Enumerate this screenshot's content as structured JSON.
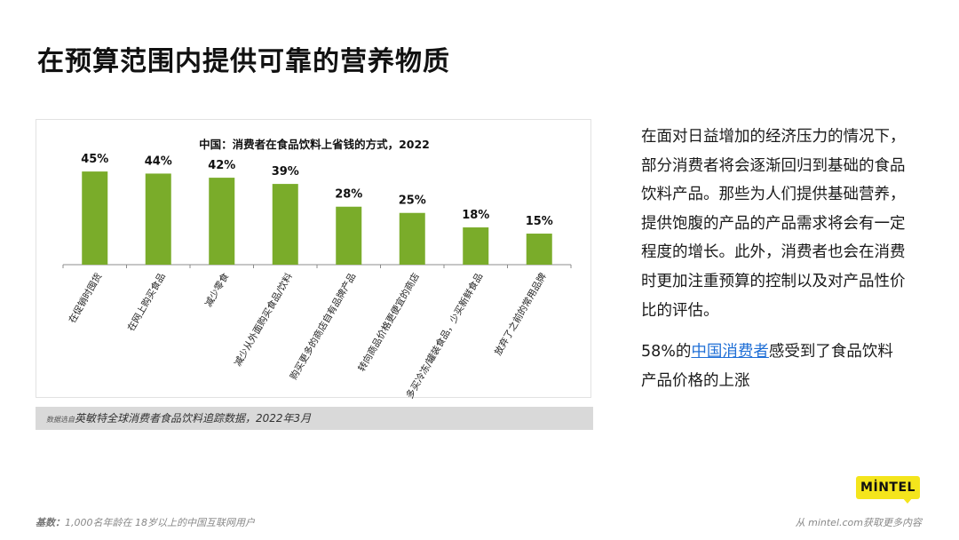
{
  "page": {
    "title": "在预算范围内提供可靠的营养物质"
  },
  "chart_data": {
    "type": "bar",
    "title": "中国：消费者在食品饮料上省钱的方式，2022",
    "categories": [
      "在促销时囤货",
      "在网上购买食品",
      "减少零食",
      "减少从外面购买食品/饮料",
      "购买更多的商店自有品牌产品",
      "转向商品价格更便宜的商店",
      "多买冷冻/罐装食品，少买新鲜食品",
      "放弃了之前的常用品牌"
    ],
    "values": [
      45,
      44,
      42,
      39,
      28,
      25,
      18,
      15
    ],
    "value_labels": [
      "45%",
      "44%",
      "42%",
      "39%",
      "28%",
      "25%",
      "18%",
      "15%"
    ],
    "ylim": [
      0,
      50
    ],
    "bar_color": "#7aac2a",
    "grid": false,
    "legend": "none"
  },
  "source": {
    "prefix": "数据选自",
    "text": "英敏特全球消费者食品饮料追踪数据，2022年3月"
  },
  "side": {
    "paragraph": "在面对日益增加的经济压力的情况下，部分消费者将会逐渐回归到基础的食品饮料产品。那些为人们提供基础营养，提供饱腹的产品的产品需求将会有一定程度的增长。此外，消费者也会在消费时更加注重预算的控制以及对产品性价比的评估。",
    "note_pre": "58%的",
    "note_highlight": "中国消费者",
    "note_post": "感受到了食品饮料产品价格的上涨"
  },
  "footer": {
    "base_label": "基数：",
    "base_text": "1,000名年龄在 18岁以上的中国互联网用户",
    "cta": "从 mintel.com获取更多内容"
  },
  "logo": {
    "text": "MİNTEL",
    "color": "#f4e51c"
  }
}
